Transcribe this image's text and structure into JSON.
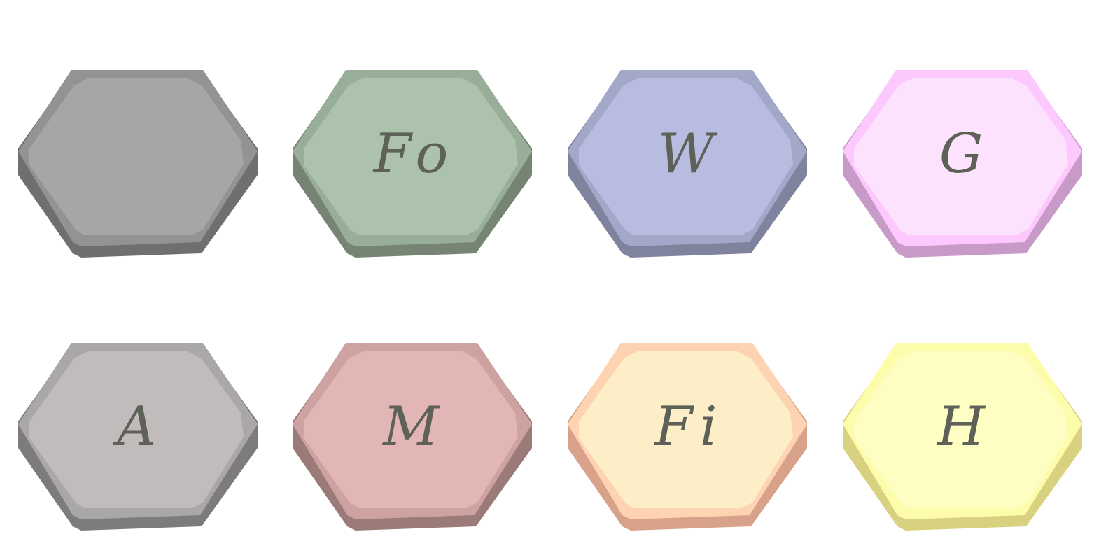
{
  "tiles": [
    {
      "label": "",
      "colors": {
        "face": "#a6a6a6",
        "rim": "#939393",
        "base": "#6f6f6f"
      }
    },
    {
      "label": "Fo",
      "colors": {
        "face": "#acc2ac",
        "rim": "#99ae98",
        "base": "#768573"
      }
    },
    {
      "label": "W",
      "colors": {
        "face": "#b7bce0",
        "rim": "#a3a8c9",
        "base": "#7f839e"
      }
    },
    {
      "label": "G",
      "colors": {
        "face": "#fde2fe",
        "rim": "#fdc8fd",
        "base": "#c79ac7"
      }
    },
    {
      "label": "A",
      "colors": {
        "face": "#c1bcbb",
        "rim": "#a9a8a7",
        "base": "#7d7c7b"
      }
    },
    {
      "label": "M",
      "colors": {
        "face": "#e1b6b5",
        "rim": "#cda2a0",
        "base": "#9a7b78"
      }
    },
    {
      "label": "Fi",
      "colors": {
        "face": "#fdeec8",
        "rim": "#fdd3b1",
        "base": "#d8a189"
      }
    },
    {
      "label": "H",
      "colors": {
        "face": "#fefec2",
        "rim": "#fcfcab",
        "base": "#d8d17f"
      }
    }
  ]
}
